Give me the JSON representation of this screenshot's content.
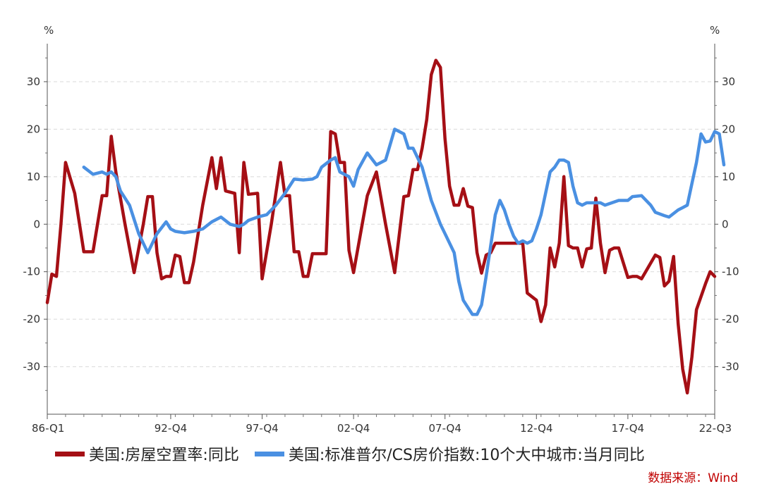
{
  "chart_data": {
    "type": "line",
    "left_unit": "%",
    "right_unit": "%",
    "y_ticks": [
      30,
      20,
      10,
      0,
      -10,
      -20,
      -30
    ],
    "ylim": [
      -40,
      38
    ],
    "x_range": [
      1986.0,
      2022.5
    ],
    "x_tick_labels": [
      {
        "x": 1986.0,
        "label": "86-Q1"
      },
      {
        "x": 1992.75,
        "label": "92-Q4"
      },
      {
        "x": 1997.75,
        "label": "97-Q4"
      },
      {
        "x": 2002.75,
        "label": "02-Q4"
      },
      {
        "x": 2007.75,
        "label": "07-Q4"
      },
      {
        "x": 2012.75,
        "label": "12-Q4"
      },
      {
        "x": 2017.75,
        "label": "17-Q4"
      },
      {
        "x": 2022.5,
        "label": "22-Q3"
      }
    ],
    "series": [
      {
        "name": "美国:房屋空置率:同比",
        "color": "#a50f15",
        "points": [
          [
            1986.0,
            -16.5
          ],
          [
            1986.25,
            -10.5
          ],
          [
            1986.5,
            -11
          ],
          [
            1986.75,
            0
          ],
          [
            1987.0,
            13
          ],
          [
            1987.5,
            6.5
          ],
          [
            1988.0,
            -5.8
          ],
          [
            1988.5,
            -5.8
          ],
          [
            1989.0,
            6
          ],
          [
            1989.25,
            6
          ],
          [
            1989.5,
            18.5
          ],
          [
            1989.75,
            11
          ],
          [
            1990.25,
            0
          ],
          [
            1990.75,
            -10.2
          ],
          [
            1991.25,
            0
          ],
          [
            1991.5,
            5.8
          ],
          [
            1991.75,
            5.8
          ],
          [
            1992.0,
            -6
          ],
          [
            1992.25,
            -11.5
          ],
          [
            1992.5,
            -11
          ],
          [
            1992.75,
            -11
          ],
          [
            1993.0,
            -6.5
          ],
          [
            1993.25,
            -6.8
          ],
          [
            1993.5,
            -12.3
          ],
          [
            1993.75,
            -12.3
          ],
          [
            1994.0,
            -8
          ],
          [
            1994.5,
            4
          ],
          [
            1995.0,
            14
          ],
          [
            1995.25,
            7.5
          ],
          [
            1995.5,
            14
          ],
          [
            1995.75,
            7
          ],
          [
            1996.25,
            6.5
          ],
          [
            1996.5,
            -6
          ],
          [
            1996.75,
            13
          ],
          [
            1997.0,
            6.3
          ],
          [
            1997.5,
            6.5
          ],
          [
            1997.75,
            -11.5
          ],
          [
            1998.25,
            0
          ],
          [
            1998.75,
            13
          ],
          [
            1999.0,
            6
          ],
          [
            1999.25,
            6
          ],
          [
            1999.5,
            -5.8
          ],
          [
            1999.75,
            -5.8
          ],
          [
            2000.0,
            -11
          ],
          [
            2000.25,
            -11
          ],
          [
            2000.5,
            -6.2
          ],
          [
            2000.75,
            -6.2
          ],
          [
            2001.25,
            -6.2
          ],
          [
            2001.5,
            19.5
          ],
          [
            2001.75,
            19
          ],
          [
            2002.0,
            13
          ],
          [
            2002.25,
            13
          ],
          [
            2002.5,
            -5.5
          ],
          [
            2002.75,
            -10.2
          ],
          [
            2003.5,
            6
          ],
          [
            2004.0,
            11
          ],
          [
            2004.5,
            0
          ],
          [
            2005.0,
            -10.2
          ],
          [
            2005.5,
            5.8
          ],
          [
            2005.75,
            6
          ],
          [
            2006.0,
            11.5
          ],
          [
            2006.25,
            11.5
          ],
          [
            2006.5,
            16
          ],
          [
            2006.75,
            22
          ],
          [
            2007.0,
            31.5
          ],
          [
            2007.25,
            34.5
          ],
          [
            2007.5,
            33
          ],
          [
            2007.75,
            18
          ],
          [
            2008.0,
            8
          ],
          [
            2008.25,
            4
          ],
          [
            2008.5,
            4
          ],
          [
            2008.75,
            7.5
          ],
          [
            2009.0,
            3.8
          ],
          [
            2009.25,
            3.5
          ],
          [
            2009.5,
            -6
          ],
          [
            2009.75,
            -10.3
          ],
          [
            2010.0,
            -6.5
          ],
          [
            2010.25,
            -6
          ],
          [
            2010.5,
            -4
          ],
          [
            2012.0,
            -4
          ],
          [
            2012.25,
            -14.5
          ],
          [
            2012.75,
            -16
          ],
          [
            2013.0,
            -20.5
          ],
          [
            2013.25,
            -17
          ],
          [
            2013.5,
            -5
          ],
          [
            2013.75,
            -9
          ],
          [
            2014.0,
            -4
          ],
          [
            2014.25,
            10
          ],
          [
            2014.5,
            -4.5
          ],
          [
            2014.75,
            -5
          ],
          [
            2015.0,
            -5
          ],
          [
            2015.25,
            -9
          ],
          [
            2015.5,
            -5.2
          ],
          [
            2015.75,
            -5
          ],
          [
            2016.0,
            5.5
          ],
          [
            2016.25,
            -4
          ],
          [
            2016.5,
            -10.2
          ],
          [
            2016.75,
            -5.5
          ],
          [
            2017.0,
            -5
          ],
          [
            2017.25,
            -5
          ],
          [
            2017.75,
            -11.2
          ],
          [
            2018.0,
            -11
          ],
          [
            2018.25,
            -11
          ],
          [
            2018.5,
            -11.5
          ],
          [
            2019.25,
            -6.5
          ],
          [
            2019.5,
            -7
          ],
          [
            2019.75,
            -13
          ],
          [
            2020.0,
            -12
          ],
          [
            2020.25,
            -6.8
          ],
          [
            2020.5,
            -21
          ],
          [
            2020.75,
            -30.5
          ],
          [
            2021.0,
            -35.5
          ],
          [
            2021.25,
            -28
          ],
          [
            2021.5,
            -18
          ],
          [
            2022.0,
            -12.5
          ],
          [
            2022.25,
            -10
          ],
          [
            2022.5,
            -11
          ]
        ]
      },
      {
        "name": "美国:标准普尔/CS房价指数:10个大中城市:当月同比",
        "color": "#4a90e2",
        "points": [
          [
            1988.0,
            12
          ],
          [
            1988.5,
            10.5
          ],
          [
            1989.0,
            11
          ],
          [
            1989.25,
            10.5
          ],
          [
            1989.5,
            11
          ],
          [
            1989.75,
            10
          ],
          [
            1990.0,
            7
          ],
          [
            1990.5,
            4
          ],
          [
            1990.75,
            1
          ],
          [
            1991.0,
            -2
          ],
          [
            1991.5,
            -6
          ],
          [
            1991.75,
            -4
          ],
          [
            1992.0,
            -2
          ],
          [
            1992.5,
            0.5
          ],
          [
            1992.75,
            -1
          ],
          [
            1993.0,
            -1.5
          ],
          [
            1993.5,
            -1.8
          ],
          [
            1994.0,
            -1.5
          ],
          [
            1994.5,
            -1
          ],
          [
            1995.0,
            0.5
          ],
          [
            1995.5,
            1.5
          ],
          [
            1996.0,
            0
          ],
          [
            1996.5,
            -0.5
          ],
          [
            1996.75,
            0
          ],
          [
            1997.0,
            0.8
          ],
          [
            1997.5,
            1.5
          ],
          [
            1998.0,
            2
          ],
          [
            1998.5,
            4
          ],
          [
            1999.0,
            6.5
          ],
          [
            1999.5,
            9.5
          ],
          [
            2000.0,
            9.3
          ],
          [
            2000.5,
            9.5
          ],
          [
            2000.75,
            10
          ],
          [
            2001.0,
            12
          ],
          [
            2001.5,
            13.5
          ],
          [
            2001.75,
            14
          ],
          [
            2002.0,
            11
          ],
          [
            2002.5,
            10
          ],
          [
            2002.75,
            8
          ],
          [
            2003.0,
            11.5
          ],
          [
            2003.5,
            15
          ],
          [
            2004.0,
            12.5
          ],
          [
            2004.5,
            13.5
          ],
          [
            2005.0,
            20
          ],
          [
            2005.5,
            19
          ],
          [
            2005.75,
            16
          ],
          [
            2006.0,
            16
          ],
          [
            2006.5,
            12
          ],
          [
            2007.0,
            5
          ],
          [
            2007.5,
            0
          ],
          [
            2007.75,
            -2
          ],
          [
            2008.0,
            -4
          ],
          [
            2008.25,
            -6
          ],
          [
            2008.5,
            -12
          ],
          [
            2008.75,
            -16
          ],
          [
            2009.0,
            -17.5
          ],
          [
            2009.25,
            -19
          ],
          [
            2009.5,
            -19
          ],
          [
            2009.75,
            -17
          ],
          [
            2010.0,
            -11
          ],
          [
            2010.5,
            2
          ],
          [
            2010.75,
            5
          ],
          [
            2011.0,
            3
          ],
          [
            2011.25,
            0
          ],
          [
            2011.5,
            -2.5
          ],
          [
            2011.75,
            -4
          ],
          [
            2012.0,
            -3.5
          ],
          [
            2012.25,
            -4
          ],
          [
            2012.5,
            -3.5
          ],
          [
            2012.75,
            -1
          ],
          [
            2013.0,
            2
          ],
          [
            2013.5,
            11
          ],
          [
            2013.75,
            12
          ],
          [
            2014.0,
            13.5
          ],
          [
            2014.25,
            13.5
          ],
          [
            2014.5,
            13
          ],
          [
            2014.75,
            8
          ],
          [
            2015.0,
            4.5
          ],
          [
            2015.25,
            4
          ],
          [
            2015.5,
            4.5
          ],
          [
            2016.25,
            4.5
          ],
          [
            2016.5,
            4
          ],
          [
            2017.25,
            5
          ],
          [
            2017.75,
            5
          ],
          [
            2018.0,
            5.8
          ],
          [
            2018.5,
            6
          ],
          [
            2019.0,
            4
          ],
          [
            2019.25,
            2.5
          ],
          [
            2019.75,
            1.8
          ],
          [
            2020.0,
            1.5
          ],
          [
            2020.5,
            3
          ],
          [
            2020.75,
            3.5
          ],
          [
            2021.0,
            4
          ],
          [
            2021.25,
            8.5
          ],
          [
            2021.5,
            13
          ],
          [
            2021.75,
            19
          ],
          [
            2022.0,
            17.3
          ],
          [
            2022.25,
            17.5
          ],
          [
            2022.5,
            19.5
          ],
          [
            2022.75,
            19
          ],
          [
            2023.0,
            12.5
          ]
        ]
      }
    ],
    "legend_position": "bottom",
    "source_note": "数据来源：Wind"
  },
  "legend": {
    "vacancy_label": "美国:房屋空置率:同比",
    "cs_label": "美国:标准普尔/CS房价指数:10个大中城市:当月同比"
  }
}
